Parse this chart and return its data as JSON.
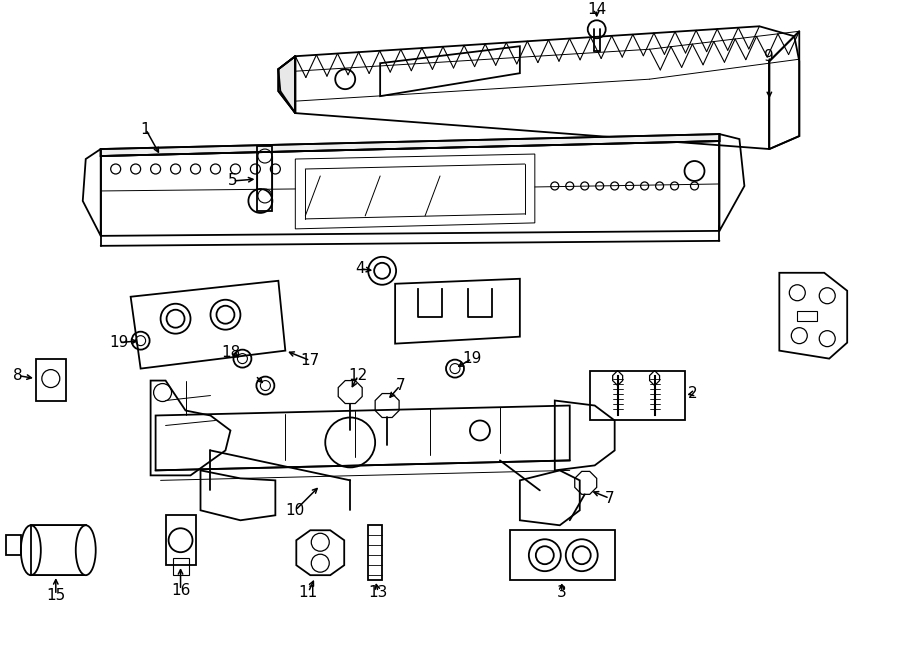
{
  "bg_color": "#ffffff",
  "line_color": "#000000",
  "figsize": [
    9.0,
    6.61
  ],
  "dpi": 100,
  "lw_main": 1.3,
  "lw_thin": 0.7,
  "fs_label": 11
}
